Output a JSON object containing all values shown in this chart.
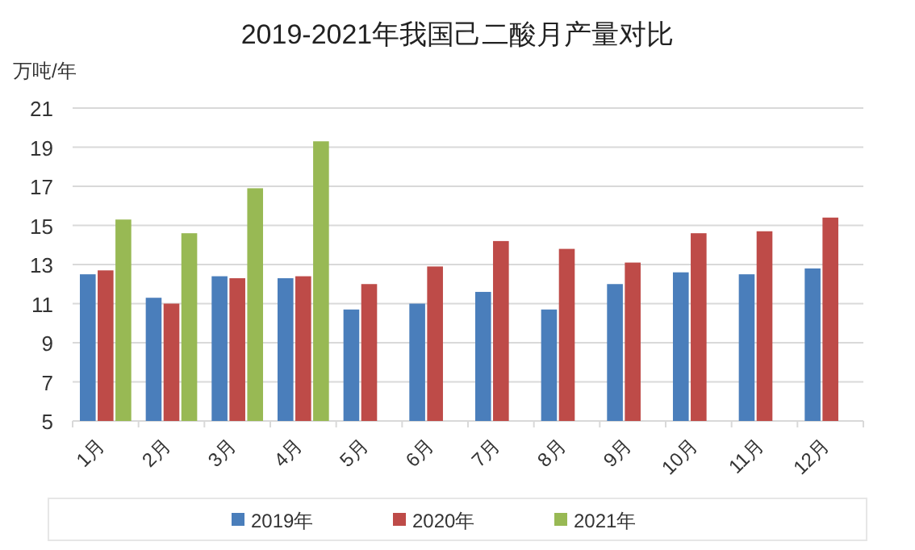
{
  "chart_data": {
    "type": "bar",
    "title": "2019-2021年我国己二酸月产量对比",
    "ylabel": "万吨/年",
    "categories": [
      "1月",
      "2月",
      "3月",
      "4月",
      "5月",
      "6月",
      "7月",
      "8月",
      "9月",
      "10月",
      "11月",
      "12月"
    ],
    "series": [
      {
        "name": "2019年",
        "color": "#4a7ebb",
        "values": [
          12.5,
          11.3,
          12.4,
          12.3,
          10.7,
          11.0,
          11.6,
          10.7,
          12.0,
          12.6,
          12.5,
          12.8
        ]
      },
      {
        "name": "2020年",
        "color": "#be4b48",
        "values": [
          12.7,
          11.0,
          12.3,
          12.4,
          12.0,
          12.9,
          14.2,
          13.8,
          13.1,
          14.6,
          14.7,
          15.4
        ]
      },
      {
        "name": "2021年",
        "color": "#98b954",
        "values": [
          15.3,
          14.6,
          16.9,
          19.3,
          null,
          null,
          null,
          null,
          null,
          null,
          null,
          null
        ]
      }
    ],
    "ylim": [
      5,
      21
    ],
    "yticks": [
      5,
      7,
      9,
      11,
      13,
      15,
      17,
      19,
      21
    ],
    "grid": "y",
    "legend": "bottom"
  }
}
